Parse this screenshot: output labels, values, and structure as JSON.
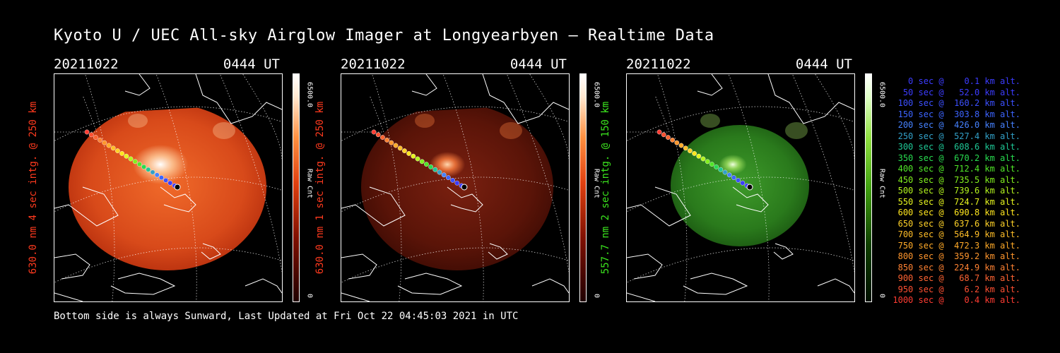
{
  "title": "Kyoto U / UEC All-sky Airglow Imager at Longyearbyen — Realtime Data",
  "footer": "Bottom side is always Sunward, Last Updated at Fri Oct 22 04:45:03 2021 in UTC",
  "colors": {
    "red_label": "#ff3a1e",
    "green_label": "#3ce61e"
  },
  "panels": [
    {
      "date": "20211022",
      "ut": "0444 UT",
      "ylabel": "630.0 nm 4 sec intg. @ 250 km",
      "cbar_max": "6500.0",
      "cbar_min": "0",
      "cbar_label": "Raw Cnt",
      "scheme": "red-bright"
    },
    {
      "date": "20211022",
      "ut": "0444 UT",
      "ylabel": "630.0 nm 1 sec intg. @ 250 km",
      "cbar_max": "6500.0",
      "cbar_min": "0",
      "cbar_label": "Raw Cnt",
      "scheme": "red-dim"
    },
    {
      "date": "20211022",
      "ut": "0444 UT",
      "ylabel": "557.7 nm 2 sec intg. @ 150 km",
      "cbar_max": "6500.0",
      "cbar_min": "0",
      "cbar_label": "Raw Cnt",
      "scheme": "green"
    }
  ],
  "legend": [
    {
      "text": "   0 sec @    0.1 km alt.",
      "color": "#3c3cff"
    },
    {
      "text": "  50 sec @   52.0 km alt.",
      "color": "#3c3cff"
    },
    {
      "text": " 100 sec @  160.2 km alt.",
      "color": "#3c50ff"
    },
    {
      "text": " 150 sec @  303.8 km alt.",
      "color": "#3c64ff"
    },
    {
      "text": " 200 sec @  426.0 km alt.",
      "color": "#4682ff"
    },
    {
      "text": " 250 sec @  527.4 km alt.",
      "color": "#32a0c8"
    },
    {
      "text": " 300 sec @  608.6 km alt.",
      "color": "#1ec896"
    },
    {
      "text": " 350 sec @  670.2 km alt.",
      "color": "#28dc50"
    },
    {
      "text": " 400 sec @  712.4 km alt.",
      "color": "#50e628"
    },
    {
      "text": " 450 sec @  735.5 km alt.",
      "color": "#82f01e"
    },
    {
      "text": " 500 sec @  739.6 km alt.",
      "color": "#b4f51e"
    },
    {
      "text": " 550 sec @  724.7 km alt.",
      "color": "#e6f51e"
    },
    {
      "text": " 600 sec @  690.8 km alt.",
      "color": "#ffe61e"
    },
    {
      "text": " 650 sec @  637.6 km alt.",
      "color": "#ffd228"
    },
    {
      "text": " 700 sec @  564.9 km alt.",
      "color": "#ffbe28"
    },
    {
      "text": " 750 sec @  472.3 km alt.",
      "color": "#ffaa28"
    },
    {
      "text": " 800 sec @  359.2 km alt.",
      "color": "#ff962d"
    },
    {
      "text": " 850 sec @  224.9 km alt.",
      "color": "#ff8232"
    },
    {
      "text": " 900 sec @   68.7 km alt.",
      "color": "#ff6432"
    },
    {
      "text": " 950 sec @    6.2 km alt.",
      "color": "#ff5032"
    },
    {
      "text": "1000 sec @    0.4 km alt.",
      "color": "#ff3c32"
    }
  ]
}
